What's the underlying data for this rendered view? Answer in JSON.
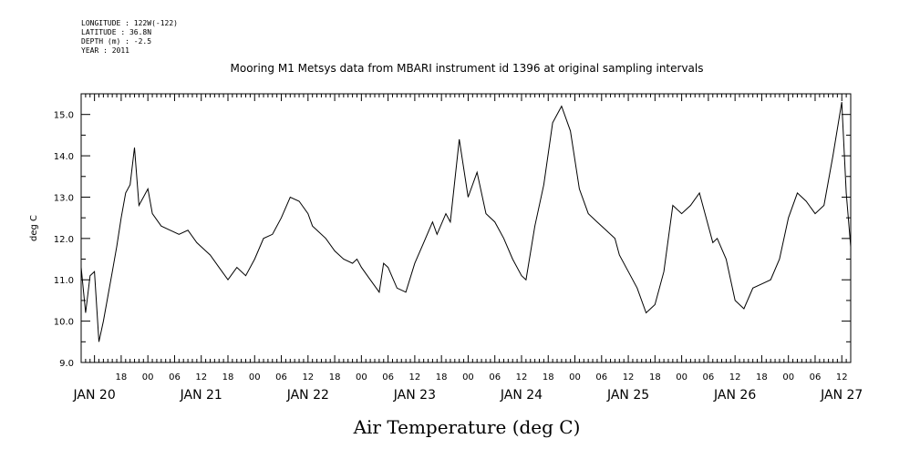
{
  "header": {
    "longitude": "LONGITUDE : 122W(-122)",
    "latitude": "LATITUDE : 36.8N",
    "depth": "DEPTH (m) : -2.5",
    "year": "YEAR : 2011",
    "title": "Mooring M1 Metsys data from MBARI instrument id 1396 at original sampling intervals"
  },
  "chart_data": {
    "type": "line",
    "title": "Mooring M1 Metsys data from MBARI instrument id 1396 at original sampling intervals",
    "xlabel": "Air Temperature (deg C)",
    "ylabel": "deg C",
    "xlim": [
      "2011-01-20T09:00",
      "2011-01-27T14:00"
    ],
    "ylim": [
      9.0,
      15.5
    ],
    "y_ticks": [
      "9.0",
      "10.0",
      "11.0",
      "12.0",
      "13.0",
      "14.0",
      "15.0"
    ],
    "x_hour_ticks": [
      "18",
      "00",
      "06",
      "12",
      "18",
      "00",
      "06",
      "12",
      "18",
      "00",
      "06",
      "12",
      "18",
      "00",
      "06",
      "12",
      "18",
      "00",
      "06",
      "12",
      "18",
      "00",
      "06",
      "12",
      "18",
      "00",
      "06",
      "12"
    ],
    "x_day_ticks": [
      "JAN 20",
      "JAN 21",
      "JAN 22",
      "JAN 23",
      "JAN 24",
      "JAN 25",
      "JAN 26",
      "JAN 27"
    ],
    "color": "#000000",
    "series": [
      {
        "x": [
          "2011-01-20T09:00",
          "2011-01-20T10:00",
          "2011-01-20T11:00",
          "2011-01-20T12:00",
          "2011-01-20T13:00",
          "2011-01-20T14:00",
          "2011-01-20T15:00",
          "2011-01-20T16:00",
          "2011-01-20T17:00",
          "2011-01-20T18:00",
          "2011-01-20T19:00",
          "2011-01-20T20:00",
          "2011-01-20T21:00",
          "2011-01-20T22:00",
          "2011-01-20T23:00",
          "2011-01-21T00:00",
          "2011-01-21T01:00",
          "2011-01-21T03:00",
          "2011-01-21T05:00",
          "2011-01-21T07:00",
          "2011-01-21T09:00",
          "2011-01-21T11:00",
          "2011-01-21T13:00",
          "2011-01-21T14:00",
          "2011-01-21T16:00",
          "2011-01-21T18:00",
          "2011-01-21T20:00",
          "2011-01-21T22:00",
          "2011-01-22T00:00",
          "2011-01-22T02:00",
          "2011-01-22T04:00",
          "2011-01-22T06:00",
          "2011-01-22T08:00",
          "2011-01-22T10:00",
          "2011-01-22T12:00",
          "2011-01-22T13:00",
          "2011-01-22T14:00",
          "2011-01-22T16:00",
          "2011-01-22T18:00",
          "2011-01-22T20:00",
          "2011-01-22T22:00",
          "2011-01-22T23:00",
          "2011-01-23T00:00",
          "2011-01-23T02:00",
          "2011-01-23T04:00",
          "2011-01-23T05:00",
          "2011-01-23T06:00",
          "2011-01-23T08:00",
          "2011-01-23T10:00",
          "2011-01-23T12:00",
          "2011-01-23T14:00",
          "2011-01-23T16:00",
          "2011-01-23T17:00",
          "2011-01-23T19:00",
          "2011-01-23T20:00",
          "2011-01-23T22:00",
          "2011-01-24T00:00",
          "2011-01-24T02:00",
          "2011-01-24T04:00",
          "2011-01-24T06:00",
          "2011-01-24T08:00",
          "2011-01-24T10:00",
          "2011-01-24T12:00",
          "2011-01-24T13:00",
          "2011-01-24T15:00",
          "2011-01-24T17:00",
          "2011-01-24T19:00",
          "2011-01-24T21:00",
          "2011-01-24T23:00",
          "2011-01-25T01:00",
          "2011-01-25T03:00",
          "2011-01-25T05:00",
          "2011-01-25T07:00",
          "2011-01-25T09:00",
          "2011-01-25T10:00",
          "2011-01-25T12:00",
          "2011-01-25T14:00",
          "2011-01-25T16:00",
          "2011-01-25T18:00",
          "2011-01-25T20:00",
          "2011-01-25T22:00",
          "2011-01-26T00:00",
          "2011-01-26T02:00",
          "2011-01-26T04:00",
          "2011-01-26T06:00",
          "2011-01-26T07:00",
          "2011-01-26T08:00",
          "2011-01-26T10:00",
          "2011-01-26T12:00",
          "2011-01-26T14:00",
          "2011-01-26T16:00",
          "2011-01-26T18:00",
          "2011-01-26T20:00",
          "2011-01-26T22:00",
          "2011-01-27T00:00",
          "2011-01-27T02:00",
          "2011-01-27T04:00",
          "2011-01-27T06:00",
          "2011-01-27T08:00",
          "2011-01-27T10:00",
          "2011-01-27T12:00",
          "2011-01-27T13:00",
          "2011-01-27T14:00"
        ],
        "values": [
          11.3,
          10.2,
          11.1,
          11.2,
          9.5,
          10.0,
          10.6,
          11.2,
          11.8,
          12.5,
          13.1,
          13.3,
          14.2,
          12.8,
          13.0,
          13.2,
          12.6,
          12.3,
          12.2,
          12.1,
          12.2,
          11.9,
          11.7,
          11.6,
          11.3,
          11.0,
          11.3,
          11.1,
          11.5,
          12.0,
          12.1,
          12.5,
          13.0,
          12.9,
          12.6,
          12.3,
          12.2,
          12.0,
          11.7,
          11.5,
          11.4,
          11.5,
          11.3,
          11.0,
          10.7,
          11.4,
          11.3,
          10.8,
          10.7,
          11.4,
          11.9,
          12.4,
          12.1,
          12.6,
          12.4,
          14.4,
          13.0,
          13.6,
          12.6,
          12.4,
          12.0,
          11.5,
          11.1,
          11.0,
          12.3,
          13.3,
          14.8,
          15.2,
          14.6,
          13.2,
          12.6,
          12.4,
          12.2,
          12.0,
          11.6,
          11.2,
          10.8,
          10.2,
          10.4,
          11.2,
          12.8,
          12.6,
          12.8,
          13.1,
          12.3,
          11.9,
          12.0,
          11.5,
          10.5,
          10.3,
          10.8,
          10.9,
          11.0,
          11.5,
          12.5,
          13.1,
          12.9,
          12.6,
          12.8,
          14.0,
          15.3,
          13.1,
          11.8
        ]
      }
    ]
  }
}
